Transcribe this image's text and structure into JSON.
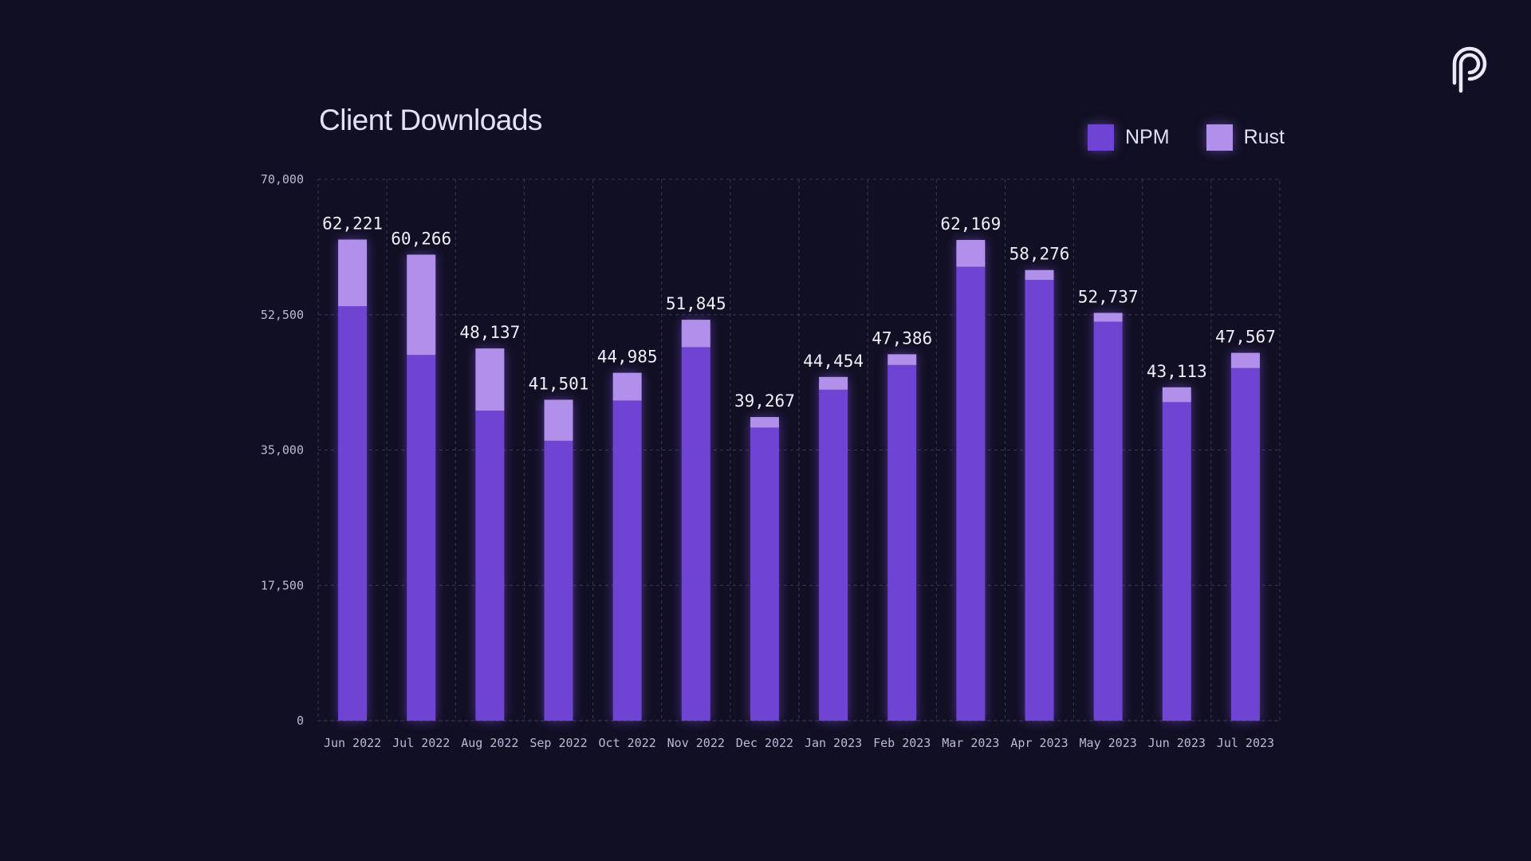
{
  "logo_icon": "pyth-p-logo-icon",
  "colors": {
    "background": "#110f23",
    "npm": "#7044d2",
    "rust": "#b090ea",
    "grid": "#3a3756",
    "axis_text": "#bdb8d6",
    "label_text": "#f0eef8"
  },
  "chart_data": {
    "type": "bar",
    "stacked": true,
    "title": "Client Downloads",
    "xlabel": "",
    "ylabel": "",
    "categories": [
      "Jun 2022",
      "Jul 2022",
      "Aug 2022",
      "Sep 2022",
      "Oct 2022",
      "Nov 2022",
      "Dec 2022",
      "Jan 2023",
      "Feb 2023",
      "Mar 2023",
      "Apr 2023",
      "May 2023",
      "Jun 2023",
      "Jul 2023"
    ],
    "series": [
      {
        "name": "NPM",
        "color": "#7044d2",
        "values": [
          53600,
          47300,
          40100,
          36200,
          41400,
          48300,
          37900,
          42800,
          46000,
          58700,
          57000,
          51600,
          41200,
          45600
        ]
      },
      {
        "name": "Rust",
        "color": "#b090ea",
        "values": [
          8621,
          12966,
          8037,
          5301,
          3585,
          3545,
          1367,
          1654,
          1386,
          3469,
          1276,
          1137,
          1913,
          1967
        ]
      }
    ],
    "totals": [
      62221,
      60266,
      48137,
      41501,
      44985,
      51845,
      39267,
      44454,
      47386,
      62169,
      58276,
      52737,
      43113,
      47567
    ],
    "total_labels": [
      "62,221",
      "60,266",
      "48,137",
      "41,501",
      "44,985",
      "51,845",
      "39,267",
      "44,454",
      "47,386",
      "62,169",
      "58,276",
      "52,737",
      "43,113",
      "47,567"
    ],
    "ylim": [
      0,
      70000
    ],
    "yticks": [
      0,
      17500,
      35000,
      52500,
      70000
    ],
    "ytick_labels": [
      "0",
      "17,500",
      "35,000",
      "52,500",
      "70,000"
    ],
    "grid": true,
    "legend_position": "top-right"
  }
}
